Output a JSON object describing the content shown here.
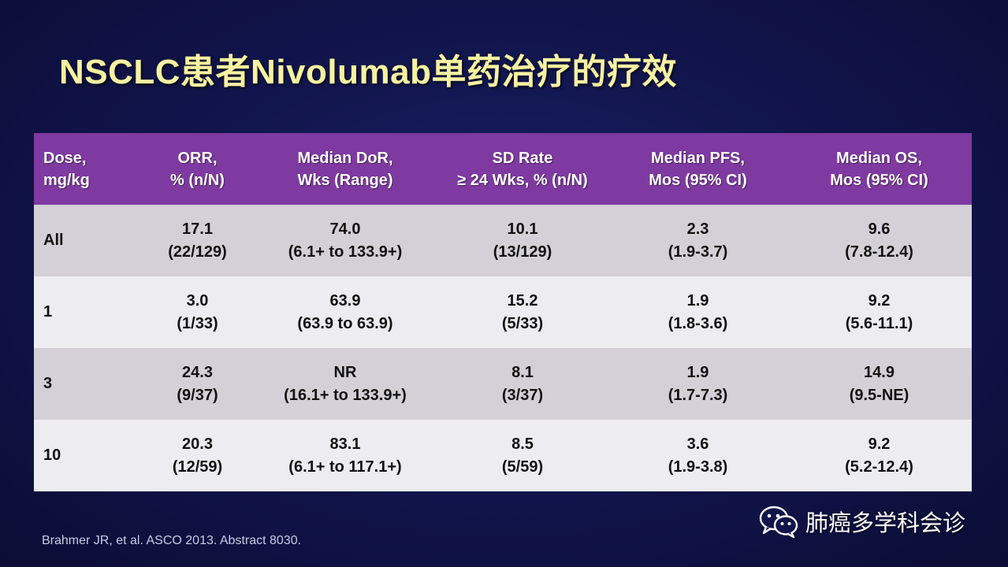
{
  "slide": {
    "title": "NSCLC患者Nivolumab单药治疗的疗效"
  },
  "table": {
    "headers": [
      {
        "line1": "Dose,",
        "line2": "mg/kg"
      },
      {
        "line1": "ORR,",
        "line2": "% (n/N)"
      },
      {
        "line1": "Median DoR,",
        "line2": "Wks (Range)"
      },
      {
        "line1": "SD Rate",
        "line2": "≥ 24 Wks, % (n/N)"
      },
      {
        "line1": "Median PFS,",
        "line2": "Mos (95% CI)"
      },
      {
        "line1": "Median OS,",
        "line2": "Mos (95% CI)"
      }
    ],
    "rows": [
      {
        "dose": "All",
        "orr": {
          "value": "17.1",
          "detail": "(22/129)"
        },
        "dor": {
          "value": "74.0",
          "detail": "(6.1+ to 133.9+)"
        },
        "sd": {
          "value": "10.1",
          "detail": "(13/129)"
        },
        "pfs": {
          "value": "2.3",
          "detail": "(1.9-3.7)"
        },
        "os": {
          "value": "9.6",
          "detail": "(7.8-12.4)"
        }
      },
      {
        "dose": "1",
        "orr": {
          "value": "3.0",
          "detail": "(1/33)"
        },
        "dor": {
          "value": "63.9",
          "detail": "(63.9 to 63.9)"
        },
        "sd": {
          "value": "15.2",
          "detail": "(5/33)"
        },
        "pfs": {
          "value": "1.9",
          "detail": "(1.8-3.6)"
        },
        "os": {
          "value": "9.2",
          "detail": "(5.6-11.1)"
        }
      },
      {
        "dose": "3",
        "orr": {
          "value": "24.3",
          "detail": "(9/37)"
        },
        "dor": {
          "value": "NR",
          "detail": "(16.1+ to 133.9+)"
        },
        "sd": {
          "value": "8.1",
          "detail": "(3/37)"
        },
        "pfs": {
          "value": "1.9",
          "detail": "(1.7-7.3)"
        },
        "os": {
          "value": "14.9",
          "detail": "(9.5-NE)"
        }
      },
      {
        "dose": "10",
        "orr": {
          "value": "20.3",
          "detail": "(12/59)"
        },
        "dor": {
          "value": "83.1",
          "detail": "(6.1+ to 117.1+)"
        },
        "sd": {
          "value": "8.5",
          "detail": "(5/59)"
        },
        "pfs": {
          "value": "3.6",
          "detail": "(1.9-3.8)"
        },
        "os": {
          "value": "9.2",
          "detail": "(5.2-12.4)"
        }
      }
    ]
  },
  "footnote": "Brahmer JR, et al. ASCO 2013. Abstract 8030.",
  "watermark": {
    "icon": "wechat-icon",
    "text": "肺癌多学科会诊"
  },
  "colors": {
    "background": "#11144a",
    "title": "#f6f2a0",
    "header": "#7e3aa0",
    "row_dark": "#d3d1d7",
    "row_light": "#ececf1"
  }
}
